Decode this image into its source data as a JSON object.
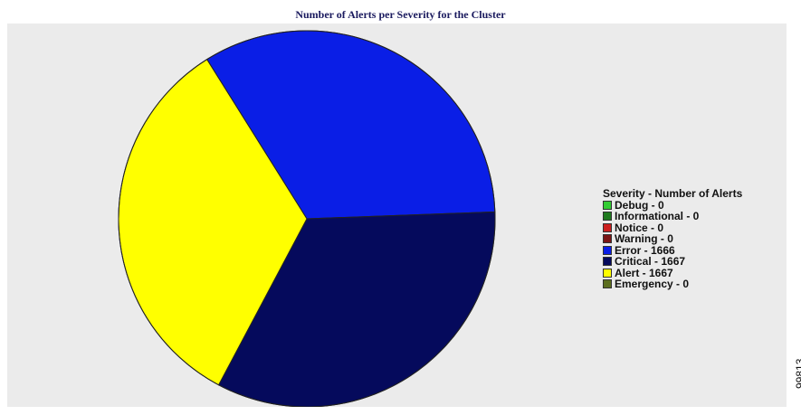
{
  "chart_data": {
    "type": "pie",
    "title": "Number of Alerts per Severity for the Cluster",
    "legend_title": "Severity - Number of Alerts",
    "legend_position": "right",
    "slices": [
      {
        "label": "Debug",
        "value": 0,
        "legend_text": "Debug - 0",
        "color": "#33cc33"
      },
      {
        "label": "Informational",
        "value": 0,
        "legend_text": "Informational - 0",
        "color": "#1f7a1f"
      },
      {
        "label": "Notice",
        "value": 0,
        "legend_text": "Notice - 0",
        "color": "#cc1f1f"
      },
      {
        "label": "Warning",
        "value": 0,
        "legend_text": "Warning - 0",
        "color": "#7a1414"
      },
      {
        "label": "Error",
        "value": 1666,
        "legend_text": "Error - 1666",
        "color": "#0a1ee6"
      },
      {
        "label": "Critical",
        "value": 1667,
        "legend_text": "Critical - 1667",
        "color": "#050a5c"
      },
      {
        "label": "Alert",
        "value": 1667,
        "legend_text": "Alert - 1667",
        "color": "#ffff00"
      },
      {
        "label": "Emergency",
        "value": 0,
        "legend_text": "Emergency - 0",
        "color": "#5c6e1f"
      }
    ]
  },
  "figure_id": "99813",
  "colors": {
    "plot_background": "#ebebeb",
    "title_color": "#1a1a5e",
    "outline": "#222222"
  }
}
